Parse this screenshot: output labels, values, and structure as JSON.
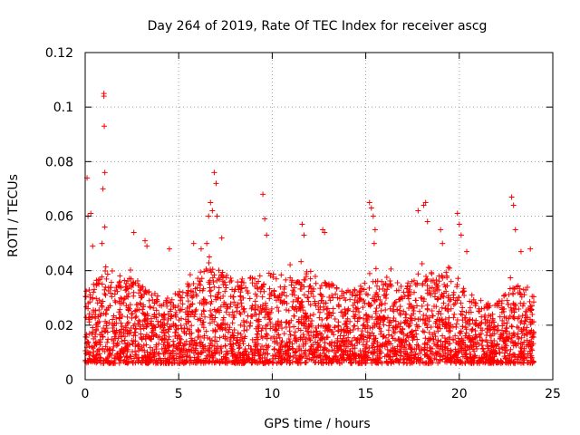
{
  "chart_data": {
    "type": "scatter",
    "title": "Day 264 of 2019, Rate Of TEC Index for receiver ascg",
    "xlabel": "GPS time / hours",
    "ylabel": "ROTI / TECUs",
    "xlim": [
      0,
      25
    ],
    "ylim": [
      0,
      0.12
    ],
    "x_ticks": [
      0,
      5,
      10,
      15,
      20,
      25
    ],
    "y_ticks": [
      0,
      0.02,
      0.04,
      0.06,
      0.08,
      0.1,
      0.12
    ],
    "x_tick_labels": [
      "0",
      "5",
      "10",
      "15",
      "20",
      "25"
    ],
    "y_tick_labels": [
      "0",
      "0.02",
      "0.04",
      "0.06",
      "0.08",
      "0.1",
      "0.12"
    ],
    "grid": true,
    "marker": "+",
    "color": "#ff0000",
    "series": [
      {
        "name": "ROTI",
        "x": [
          0.1,
          0.15,
          0.3,
          0.4,
          0.45,
          0.9,
          0.95,
          1.0,
          1.0,
          1.02,
          1.05,
          1.05,
          2.6,
          3.2,
          3.3,
          4.5,
          5.8,
          6.2,
          6.5,
          6.6,
          6.7,
          6.8,
          6.9,
          7.0,
          7.05,
          7.3,
          9.5,
          9.6,
          9.7,
          11.6,
          11.7,
          12.7,
          12.8,
          15.2,
          15.3,
          15.4,
          15.5,
          15.45,
          17.8,
          18.1,
          18.2,
          18.3,
          19.0,
          19.1,
          19.9,
          20.0,
          20.1,
          20.4,
          22.8,
          22.9,
          23.0,
          23.3,
          23.8
        ],
        "y": [
          0.074,
          0.06,
          0.061,
          0.049,
          0.035,
          0.05,
          0.07,
          0.105,
          0.104,
          0.093,
          0.076,
          0.056,
          0.054,
          0.051,
          0.049,
          0.048,
          0.05,
          0.048,
          0.05,
          0.06,
          0.065,
          0.062,
          0.076,
          0.072,
          0.06,
          0.052,
          0.068,
          0.059,
          0.053,
          0.057,
          0.053,
          0.055,
          0.054,
          0.065,
          0.063,
          0.06,
          0.055,
          0.05,
          0.062,
          0.064,
          0.065,
          0.058,
          0.055,
          0.05,
          0.061,
          0.057,
          0.053,
          0.047,
          0.067,
          0.064,
          0.055,
          0.047,
          0.048
        ]
      }
    ],
    "band_profile": {
      "hours": [
        0,
        1,
        2,
        3,
        4,
        5,
        6,
        7,
        8,
        9,
        10,
        11,
        12,
        13,
        14,
        15,
        16,
        17,
        18,
        19,
        20,
        21,
        22,
        23,
        24
      ],
      "typical_max": [
        0.032,
        0.04,
        0.038,
        0.036,
        0.03,
        0.032,
        0.04,
        0.042,
        0.036,
        0.038,
        0.04,
        0.038,
        0.04,
        0.036,
        0.032,
        0.036,
        0.038,
        0.035,
        0.038,
        0.04,
        0.036,
        0.03,
        0.028,
        0.036,
        0.034
      ],
      "floor": 0.006,
      "points_per_hour": 140
    }
  }
}
